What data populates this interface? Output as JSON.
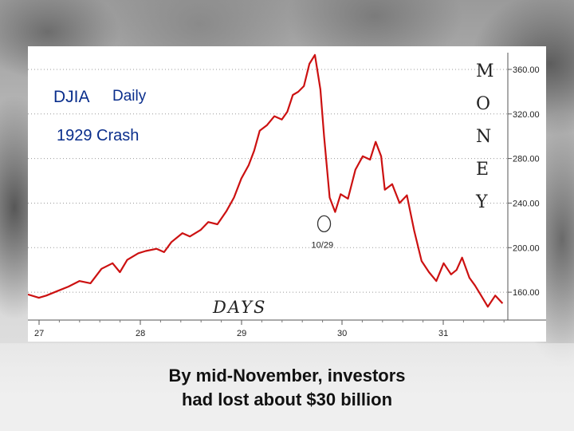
{
  "chart_data": {
    "type": "line",
    "title": "DJIA",
    "title_suffix": "Daily",
    "subtitle": "1929 Crash",
    "y_axis_title_letters": [
      "M",
      "O",
      "N",
      "E",
      "Y"
    ],
    "xlabel": "DAYS",
    "x_tick_labels": [
      "27",
      "28",
      "29",
      "30",
      "31"
    ],
    "x_range": [
      0,
      26
    ],
    "y_ticks": [
      160,
      200,
      240,
      280,
      320,
      360
    ],
    "y_tick_labels": [
      "160.00",
      "200.00",
      "240.00",
      "280.00",
      "320.00",
      "360.00"
    ],
    "ylim": [
      135,
      375
    ],
    "grid": true,
    "annotation": {
      "label": "10/29",
      "x": 16.1,
      "y": 230
    },
    "series": [
      {
        "color": "#cc1111",
        "x": [
          0,
          0.6,
          1.0,
          1.6,
          2.2,
          2.8,
          3.4,
          4.0,
          4.6,
          5.0,
          5.4,
          6.0,
          6.4,
          7.0,
          7.4,
          7.8,
          8.4,
          8.8,
          9.4,
          9.8,
          10.3,
          10.8,
          11.2,
          11.6,
          12.0,
          12.3,
          12.6,
          13.0,
          13.4,
          13.8,
          14.1,
          14.4,
          14.7,
          15.0,
          15.3,
          15.6,
          15.9,
          16.1,
          16.4,
          16.7,
          17.0,
          17.4,
          17.8,
          18.2,
          18.6,
          18.9,
          19.2,
          19.4,
          19.8,
          20.2,
          20.6,
          21.0,
          21.4,
          21.8,
          22.2,
          22.6,
          23.0,
          23.3,
          23.6,
          24.0,
          24.3,
          24.6,
          25.0,
          25.4,
          25.8
        ],
        "y": [
          158,
          155,
          157,
          161,
          165,
          170,
          168,
          181,
          186,
          178,
          189,
          195,
          197,
          199,
          196,
          205,
          213,
          210,
          216,
          223,
          221,
          233,
          245,
          262,
          274,
          287,
          305,
          310,
          318,
          315,
          322,
          337,
          340,
          345,
          365,
          373,
          342,
          300,
          245,
          232,
          248,
          244,
          270,
          282,
          279,
          295,
          282,
          252,
          257,
          240,
          247,
          215,
          188,
          178,
          170,
          186,
          176,
          180,
          191,
          173,
          166,
          158,
          147,
          157,
          150
        ]
      }
    ]
  },
  "caption": {
    "line1": "By mid-November, investors",
    "line2": "had lost about $30 billion"
  }
}
